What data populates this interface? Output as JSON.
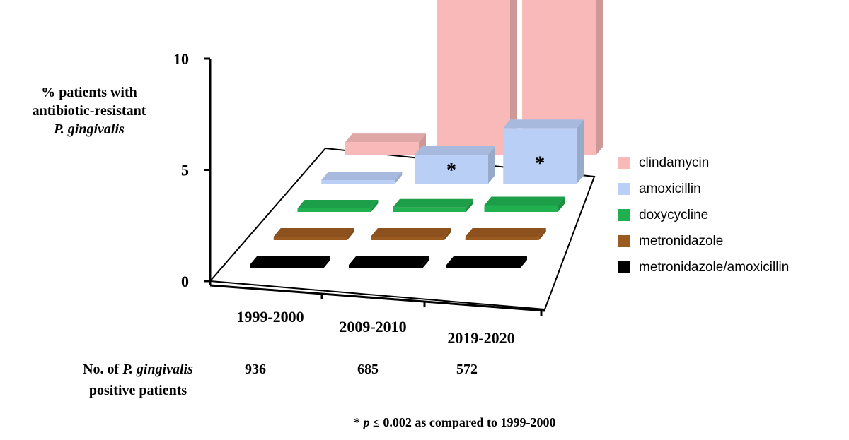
{
  "chart_data": {
    "type": "bar",
    "categories": [
      "1999-2000",
      "2009-2010",
      "2019-2020"
    ],
    "series": [
      {
        "name": "clindamycin",
        "color": "#f9b9b9",
        "values": [
          0.6,
          10.0,
          10.0
        ],
        "significant": [
          false,
          true,
          true
        ]
      },
      {
        "name": "amoxicillin",
        "color": "#b9cff5",
        "values": [
          0.1,
          1.3,
          2.5
        ],
        "significant": [
          false,
          true,
          true
        ]
      },
      {
        "name": "doxycycline",
        "color": "#20b050",
        "values": [
          0.1,
          0.2,
          0.3
        ],
        "significant": [
          false,
          false,
          false
        ]
      },
      {
        "name": "metronidazole",
        "color": "#9b5a1f",
        "values": [
          0.1,
          0.1,
          0.1
        ],
        "significant": [
          false,
          false,
          false
        ]
      },
      {
        "name": "metronidazole/amoxicillin",
        "color": "#000000",
        "values": [
          0.1,
          0.1,
          0.1
        ],
        "significant": [
          false,
          false,
          false
        ]
      }
    ],
    "ylim": [
      0,
      10
    ],
    "yticks": [
      "0",
      "5",
      "10"
    ],
    "ylabel_lines": [
      "% patients with",
      "antibiotic-resistant"
    ],
    "ylabel_italic": "P. gingivalis",
    "significance_marker": "*",
    "grid": false,
    "legend_position": "right"
  },
  "footer": {
    "label_prefix": "No. of",
    "label_italic": "P. gingivalis",
    "label_line2": "positive patients",
    "counts": [
      "936",
      "685",
      "572"
    ]
  },
  "footnote": {
    "marker": "*",
    "p": "p",
    "text": "≤  0.002 as compared to 1999-2000"
  }
}
